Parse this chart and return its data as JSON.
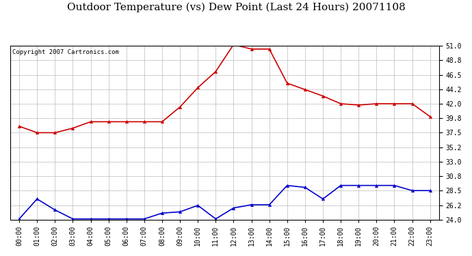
{
  "title": "Outdoor Temperature (vs) Dew Point (Last 24 Hours) 20071108",
  "copyright": "Copyright 2007 Cartronics.com",
  "x_labels": [
    "00:00",
    "01:00",
    "02:00",
    "03:00",
    "04:00",
    "05:00",
    "06:00",
    "07:00",
    "08:00",
    "09:00",
    "10:00",
    "11:00",
    "12:00",
    "13:00",
    "14:00",
    "15:00",
    "16:00",
    "17:00",
    "18:00",
    "19:00",
    "20:00",
    "21:00",
    "22:00",
    "23:00"
  ],
  "temp_data": [
    38.5,
    37.5,
    37.5,
    38.2,
    39.2,
    39.2,
    39.2,
    39.2,
    39.2,
    41.5,
    44.5,
    47.0,
    51.2,
    50.5,
    50.5,
    45.2,
    44.2,
    43.2,
    42.0,
    41.8,
    42.0,
    42.0,
    42.0,
    40.0
  ],
  "dew_data": [
    24.1,
    27.2,
    25.5,
    24.1,
    24.1,
    24.1,
    24.1,
    24.1,
    25.0,
    25.2,
    26.2,
    24.1,
    25.8,
    26.3,
    26.3,
    29.3,
    29.0,
    27.2,
    29.3,
    29.3,
    29.3,
    29.3,
    28.5,
    28.5
  ],
  "temp_color": "#cc0000",
  "dew_color": "#0000cc",
  "marker": "^",
  "markersize": 3,
  "linewidth": 1.2,
  "ylim": [
    24.0,
    51.0
  ],
  "yticks": [
    24.0,
    26.2,
    28.5,
    30.8,
    33.0,
    35.2,
    37.5,
    39.8,
    42.0,
    44.2,
    46.5,
    48.8,
    51.0
  ],
  "bg_color": "#ffffff",
  "grid_color": "#bbbbbb",
  "title_fontsize": 11,
  "copyright_fontsize": 6.5,
  "tick_fontsize": 7,
  "figwidth": 6.9,
  "figheight": 3.75
}
